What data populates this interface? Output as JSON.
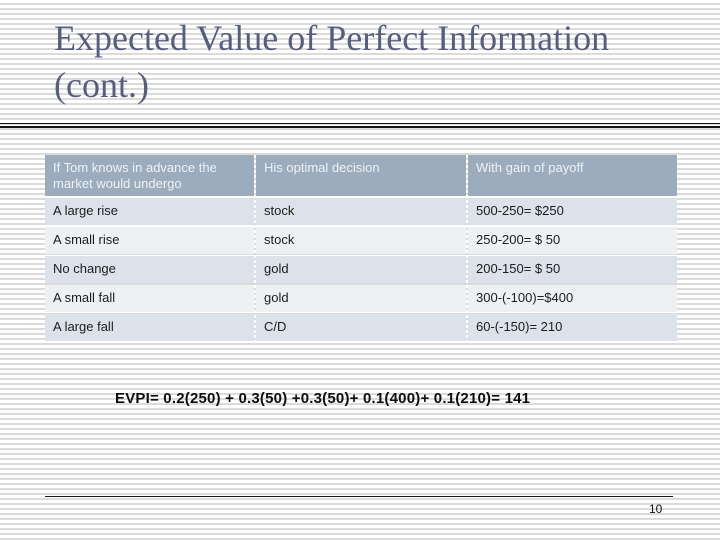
{
  "slide": {
    "title_line1": "Expected Value of Perfect Information",
    "title_line2": "(cont.)",
    "page_number": "10"
  },
  "table": {
    "headers": [
      "If Tom knows in advance the market would undergo",
      "His optimal decision",
      "With gain of payoff"
    ],
    "rows": [
      [
        "A large rise",
        "stock",
        "500-250= $250"
      ],
      [
        "A small rise",
        "stock",
        "250-200= $ 50"
      ],
      [
        "No change",
        "gold",
        "200-150= $ 50"
      ],
      [
        "A small fall",
        "gold",
        "300-(-100)=$400"
      ],
      [
        "A large fall",
        "C/D",
        "60-(-150)= 210"
      ]
    ]
  },
  "formula": {
    "text": "EVPI= 0.2(250) + 0.3(50) +0.3(50)+ 0.1(400)+ 0.1(210)= 141"
  },
  "colors": {
    "stripe_color": "#dbdbdb",
    "title_color": "#565d7d",
    "header_bg": "#9cacbd",
    "header_text": "#eef2f6",
    "row_odd_bg": "#dce2e9",
    "row_even_bg": "#eef1f4"
  }
}
